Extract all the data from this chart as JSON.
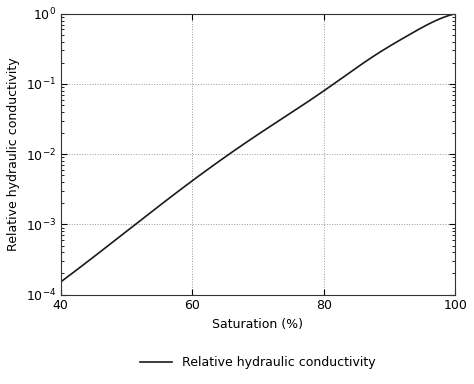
{
  "title": "",
  "xlabel": "Saturation (%)",
  "ylabel": "Relative hydraulic conductivity",
  "xlim": [
    40,
    100
  ],
  "ylim_log": [
    -4,
    0
  ],
  "x_ticks": [
    40,
    60,
    80,
    100
  ],
  "y_ticks": [
    0.0001,
    0.001,
    0.01,
    0.1,
    1.0
  ],
  "line_color": "#1a1a1a",
  "line_width": 1.2,
  "grid_color": "#999999",
  "grid_style": "dotted",
  "background_color": "#ffffff",
  "legend_label": "Relative hydraulic conductivity",
  "legend_line_color": "#1a1a1a",
  "S_pts": [
    40,
    50,
    60,
    70,
    80,
    88,
    93,
    97,
    100
  ],
  "logKr_pts": [
    -3.82,
    -3.1,
    -2.38,
    -1.72,
    -1.1,
    -0.58,
    -0.3,
    -0.1,
    0.0
  ]
}
